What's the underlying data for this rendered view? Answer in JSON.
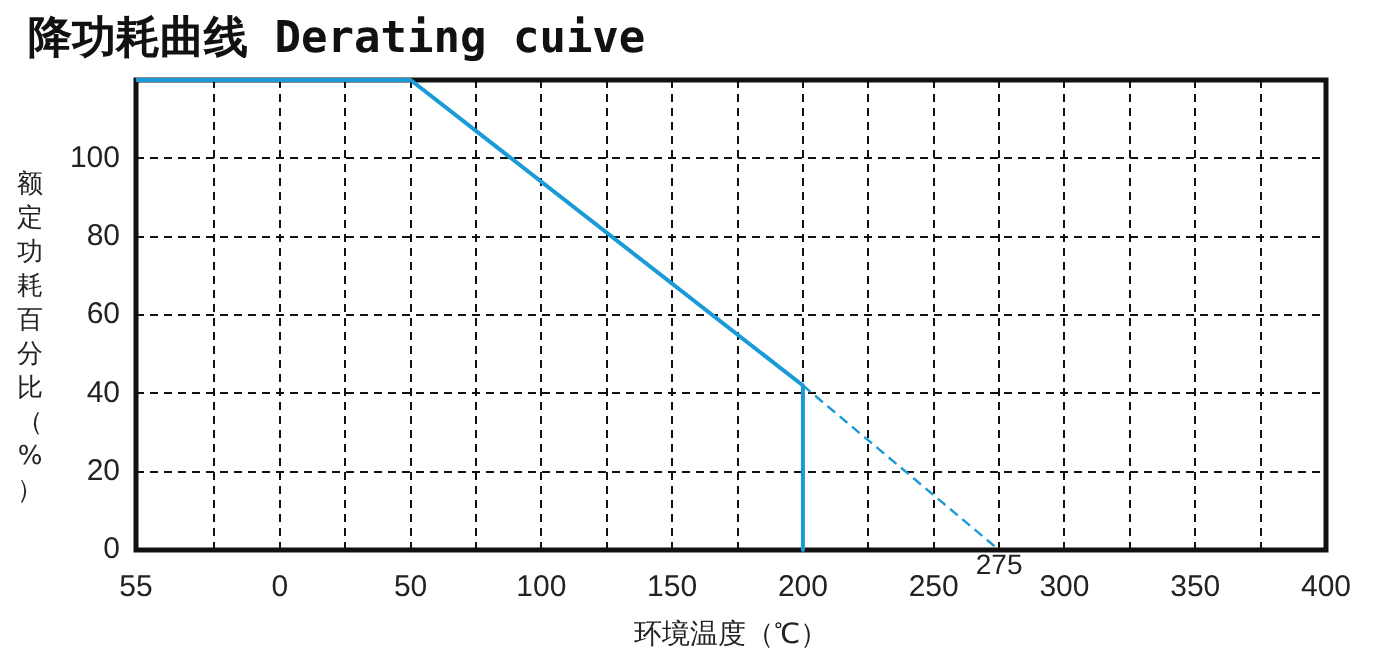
{
  "chart_data": {
    "type": "line",
    "title": "降功耗曲线 Derating cuive",
    "xlabel": "环境温度（℃）",
    "ylabel": "额定功耗百分比（%）",
    "xlim": [
      -55,
      400
    ],
    "xticks": [
      {
        "value": -55,
        "label": "55"
      },
      {
        "value": -25,
        "label": null
      },
      0,
      {
        "value": 25,
        "label": null
      },
      50,
      {
        "value": 75,
        "label": null
      },
      100,
      {
        "value": 125,
        "label": null
      },
      150,
      {
        "value": 175,
        "label": null
      },
      200,
      {
        "value": 225,
        "label": null
      },
      250,
      {
        "value": 275,
        "label": null
      },
      300,
      {
        "value": 325,
        "label": null
      },
      350,
      {
        "value": 375,
        "label": null
      },
      400
    ],
    "ylim": [
      0,
      120
    ],
    "yticks": [
      0,
      20,
      40,
      60,
      80,
      100,
      {
        "value": 120,
        "label": null
      }
    ],
    "series": [
      {
        "color": "#1a9ad6",
        "x": [
          -55,
          50,
          200
        ],
        "values": [
          120,
          120,
          42
        ]
      },
      {
        "color": "#1a9ad6",
        "x": [
          200,
          200
        ],
        "values": [
          42,
          0
        ]
      },
      {
        "color": "#1a9ad6",
        "x": [
          200,
          275
        ],
        "values": [
          42,
          0
        ],
        "line_style": "dashed"
      }
    ],
    "annotations": [
      {
        "text": "275",
        "x": 275,
        "y": 0
      }
    ],
    "grid": true,
    "legend": false,
    "marker": "none",
    "line_style": "solid"
  }
}
